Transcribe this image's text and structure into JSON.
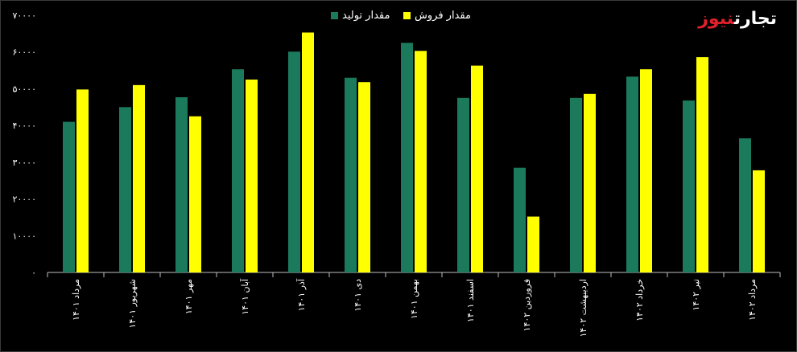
{
  "brand": {
    "part1": "نیوز",
    "part2": "تجارت"
  },
  "chart_data": {
    "type": "bar",
    "categories": [
      "مرداد ۱۴۰۱",
      "شهریور ۱۴۰۱",
      "مهر ۱۴۰۱",
      "آبان ۱۴۰۱",
      "آذر ۱۴۰۱",
      "دی ۱۴۰۱",
      "بهمن ۱۴۰۱",
      "اسفند ۱۴۰۱",
      "فروردین ۱۴۰۲",
      "اردیبهشت ۱۴۰۲",
      "خرداد ۱۴۰۲",
      "تیر ۱۴۰۲",
      "مرداد ۱۴۰۲"
    ],
    "series": [
      {
        "name": "مقدار تولید",
        "color": "#1c7a5c",
        "values": [
          41000,
          45000,
          47700,
          55300,
          60100,
          53000,
          62500,
          47500,
          28500,
          47500,
          53300,
          46800,
          36500
        ]
      },
      {
        "name": "مقدار فروش",
        "color": "#ffff00",
        "values": [
          49800,
          51000,
          42500,
          52500,
          65300,
          51800,
          60300,
          56300,
          15200,
          48600,
          55300,
          58600,
          27800
        ]
      }
    ],
    "yticks": [
      "0",
      "10000",
      "20000",
      "30000",
      "40000",
      "50000",
      "60000",
      "70000"
    ],
    "ylim": [
      0,
      70000
    ],
    "legend_position": "top"
  }
}
